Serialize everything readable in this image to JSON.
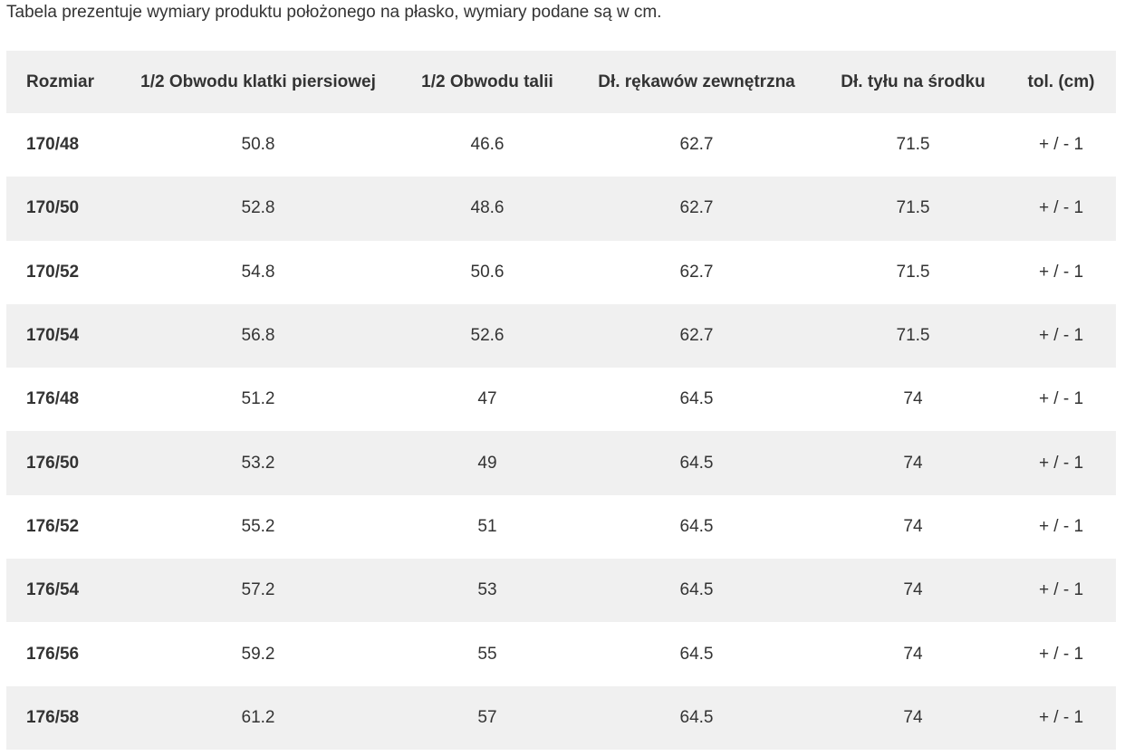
{
  "intro": "Tabela prezentuje wymiary produktu położonego na płasko, wymiary podane są w cm.",
  "table": {
    "headers": [
      "Rozmiar",
      "1/2 Obwodu klatki piersiowej",
      "1/2 Obwodu talii",
      "Dł. rękawów zewnętrzna",
      "Dł. tyłu na środku",
      "tol. (cm)"
    ],
    "rows": [
      [
        "170/48",
        "50.8",
        "46.6",
        "62.7",
        "71.5",
        "+ / - 1"
      ],
      [
        "170/50",
        "52.8",
        "48.6",
        "62.7",
        "71.5",
        "+ / - 1"
      ],
      [
        "170/52",
        "54.8",
        "50.6",
        "62.7",
        "71.5",
        "+ / - 1"
      ],
      [
        "170/54",
        "56.8",
        "52.6",
        "62.7",
        "71.5",
        "+ / - 1"
      ],
      [
        "176/48",
        "51.2",
        "47",
        "64.5",
        "74",
        "+ / - 1"
      ],
      [
        "176/50",
        "53.2",
        "49",
        "64.5",
        "74",
        "+ / - 1"
      ],
      [
        "176/52",
        "55.2",
        "51",
        "64.5",
        "74",
        "+ / - 1"
      ],
      [
        "176/54",
        "57.2",
        "53",
        "64.5",
        "74",
        "+ / - 1"
      ],
      [
        "176/56",
        "59.2",
        "55",
        "64.5",
        "74",
        "+ / - 1"
      ],
      [
        "176/58",
        "61.2",
        "57",
        "64.5",
        "74",
        "+ / - 1"
      ]
    ]
  },
  "colors": {
    "text": "#333333",
    "stripe": "#f0f0f0",
    "background": "#ffffff"
  }
}
